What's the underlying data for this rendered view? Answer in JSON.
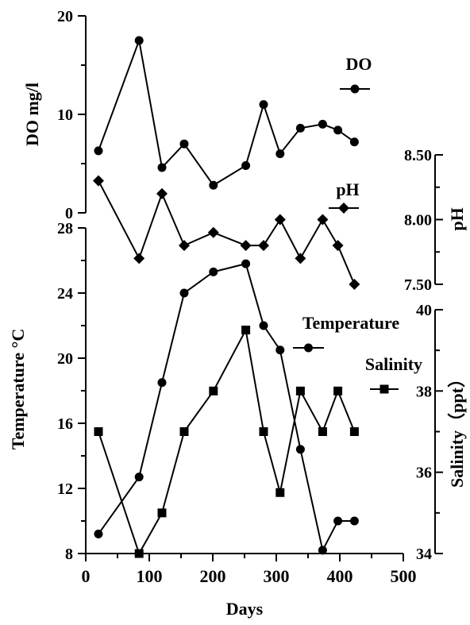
{
  "chart_data": [
    {
      "type": "line",
      "ylabel": "DO mg/l",
      "ylim": [
        0,
        20
      ],
      "yticks": [
        "0",
        "10",
        "20"
      ],
      "series": [
        {
          "name": "DO",
          "marker": "circle",
          "x": [
            20,
            84,
            120,
            155,
            201,
            252,
            280,
            306,
            338,
            373,
            397,
            423
          ],
          "y": [
            6.3,
            17.5,
            4.6,
            7.0,
            2.8,
            4.8,
            11.0,
            6.0,
            8.6,
            9.0,
            8.4,
            7.2
          ]
        }
      ]
    },
    {
      "type": "line",
      "ylabel": "pH",
      "ylim": [
        7.5,
        8.5
      ],
      "yticks": [
        "7.50",
        "8.00",
        "8.50"
      ],
      "series": [
        {
          "name": "pH",
          "marker": "diamond",
          "x": [
            20,
            84,
            120,
            155,
            201,
            252,
            280,
            306,
            338,
            373,
            397,
            423
          ],
          "y": [
            8.3,
            7.7,
            8.2,
            7.8,
            7.9,
            7.8,
            7.8,
            8.0,
            7.7,
            8.0,
            7.8,
            7.5
          ]
        }
      ]
    },
    {
      "type": "line",
      "ylabel": "Temperature °C",
      "ylim": [
        8,
        28
      ],
      "yticks": [
        "8",
        "12",
        "16",
        "20",
        "24",
        "28"
      ],
      "series": [
        {
          "name": "Temperature",
          "marker": "circle",
          "x": [
            20,
            84,
            120,
            155,
            201,
            252,
            280,
            306,
            338,
            373,
            397,
            423
          ],
          "y": [
            9.2,
            12.7,
            18.5,
            24.0,
            25.3,
            25.8,
            22.0,
            20.5,
            14.4,
            8.2,
            10.0,
            10.0
          ]
        }
      ]
    },
    {
      "type": "line",
      "ylabel": "Salinity（ppt）",
      "ylim": [
        34,
        40
      ],
      "yticks": [
        "34",
        "36",
        "38",
        "40"
      ],
      "series": [
        {
          "name": "Salinity",
          "marker": "square",
          "x": [
            20,
            84,
            120,
            155,
            201,
            252,
            280,
            306,
            338,
            373,
            397,
            423
          ],
          "y": [
            37.0,
            34.0,
            35.0,
            37.0,
            38.0,
            39.5,
            37.0,
            35.5,
            38.0,
            37.0,
            38.0,
            37.0
          ]
        }
      ]
    }
  ],
  "x_axis": {
    "label": "Days",
    "xlim": [
      0,
      500
    ],
    "ticks": [
      "0",
      "100",
      "200",
      "300",
      "400",
      "500"
    ]
  }
}
